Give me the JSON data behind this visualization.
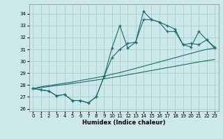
{
  "xlabel": "Humidex (Indice chaleur)",
  "xlim": [
    -0.5,
    23.5
  ],
  "ylim": [
    25.8,
    34.8
  ],
  "yticks": [
    26,
    27,
    28,
    29,
    30,
    31,
    32,
    33,
    34
  ],
  "xticks": [
    0,
    1,
    2,
    3,
    4,
    5,
    6,
    7,
    8,
    9,
    10,
    11,
    12,
    13,
    14,
    15,
    16,
    17,
    18,
    19,
    20,
    21,
    22,
    23
  ],
  "background_color": "#cce8e8",
  "grid_color": "#aad4d4",
  "line_color": "#1a6b6b",
  "y_jagged1": [
    27.7,
    27.6,
    27.5,
    27.1,
    27.2,
    26.7,
    26.7,
    26.5,
    27.0,
    28.7,
    31.1,
    33.0,
    31.1,
    31.6,
    34.2,
    33.5,
    33.3,
    33.0,
    32.7,
    31.4,
    31.2,
    32.5,
    31.8,
    31.1
  ],
  "y_jagged2": [
    27.7,
    27.6,
    27.5,
    27.1,
    27.2,
    26.7,
    26.7,
    26.5,
    27.0,
    28.7,
    30.3,
    31.0,
    31.5,
    31.6,
    33.5,
    33.5,
    33.3,
    32.5,
    32.5,
    31.4,
    31.5,
    31.4,
    31.8,
    31.2
  ],
  "y_trend1": [
    27.7,
    27.85,
    27.95,
    28.05,
    28.15,
    28.25,
    28.38,
    28.5,
    28.62,
    28.75,
    28.9,
    29.05,
    29.22,
    29.4,
    29.58,
    29.76,
    29.94,
    30.12,
    30.3,
    30.48,
    30.66,
    30.84,
    31.0,
    31.1
  ],
  "y_trend2": [
    27.7,
    27.78,
    27.87,
    27.96,
    28.04,
    28.13,
    28.22,
    28.32,
    28.42,
    28.52,
    28.63,
    28.74,
    28.86,
    28.98,
    29.1,
    29.22,
    29.34,
    29.46,
    29.58,
    29.7,
    29.82,
    29.94,
    30.05,
    30.15
  ]
}
